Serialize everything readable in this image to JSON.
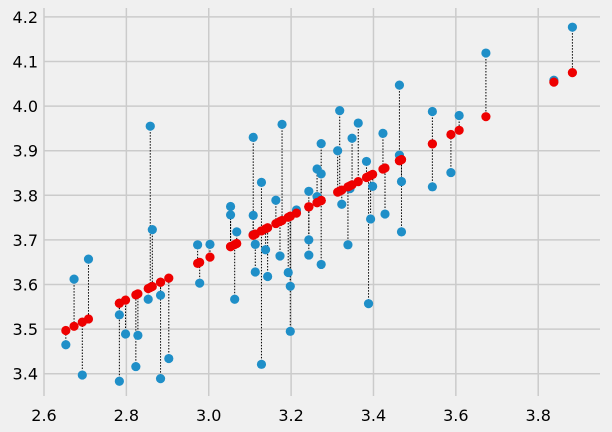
{
  "chart_data": {
    "type": "scatter",
    "title": "",
    "xlabel": "",
    "ylabel": "",
    "xlim": [
      2.6,
      3.95
    ],
    "ylim": [
      3.35,
      4.22
    ],
    "grid": true,
    "background": "#f0f0f0",
    "grid_color": "#cbcbcb",
    "x_ticks": [
      "2.6",
      "2.8",
      "3.0",
      "3.2",
      "3.4",
      "3.6",
      "3.8"
    ],
    "x_tick_values": [
      2.6,
      2.8,
      3.0,
      3.2,
      3.4,
      3.6,
      3.8
    ],
    "y_ticks": [
      "3.4",
      "3.5",
      "3.6",
      "3.7",
      "3.8",
      "3.9",
      "4.0",
      "4.1",
      "4.2"
    ],
    "y_tick_values": [
      3.4,
      3.5,
      3.6,
      3.7,
      3.8,
      3.9,
      4.0,
      4.1,
      4.2
    ],
    "observed_color": "#1f8fc8",
    "fitted_color": "#ee0000",
    "residual_line_color": "#000000",
    "fit": {
      "slope": 0.47,
      "intercept": 2.25
    },
    "observed_x": [
      2.653,
      2.673,
      2.693,
      2.708,
      2.783,
      2.783,
      2.798,
      2.823,
      2.828,
      2.853,
      2.858,
      2.863,
      2.883,
      2.883,
      2.903,
      2.973,
      2.978,
      3.003,
      3.053,
      3.053,
      3.063,
      3.068,
      3.108,
      3.108,
      3.108,
      3.113,
      3.113,
      3.128,
      3.128,
      3.138,
      3.143,
      3.163,
      3.173,
      3.178,
      3.193,
      3.198,
      3.198,
      3.213,
      3.243,
      3.243,
      3.243,
      3.263,
      3.263,
      3.273,
      3.273,
      3.273,
      3.313,
      3.318,
      3.323,
      3.338,
      3.343,
      3.348,
      3.363,
      3.383,
      3.388,
      3.393,
      3.398,
      3.423,
      3.428,
      3.463,
      3.463,
      3.468,
      3.468,
      3.543,
      3.543,
      3.588,
      3.608,
      3.673,
      3.838,
      3.883
    ],
    "observed_y": [
      3.465,
      3.612,
      3.397,
      3.657,
      3.383,
      3.532,
      3.489,
      3.416,
      3.486,
      3.567,
      3.955,
      3.723,
      3.389,
      3.576,
      3.434,
      3.689,
      3.603,
      3.69,
      3.775,
      3.756,
      3.567,
      3.718,
      3.93,
      3.755,
      3.712,
      3.628,
      3.69,
      3.829,
      3.421,
      3.678,
      3.618,
      3.789,
      3.664,
      3.959,
      3.627,
      3.596,
      3.495,
      3.767,
      3.809,
      3.7,
      3.666,
      3.859,
      3.797,
      3.916,
      3.848,
      3.645,
      3.9,
      3.99,
      3.78,
      3.689,
      3.815,
      3.928,
      3.962,
      3.876,
      3.557,
      3.747,
      3.82,
      3.939,
      3.758,
      4.047,
      3.89,
      3.831,
      3.718,
      3.988,
      3.819,
      3.851,
      3.979,
      4.119,
      4.058,
      4.177
    ]
  }
}
